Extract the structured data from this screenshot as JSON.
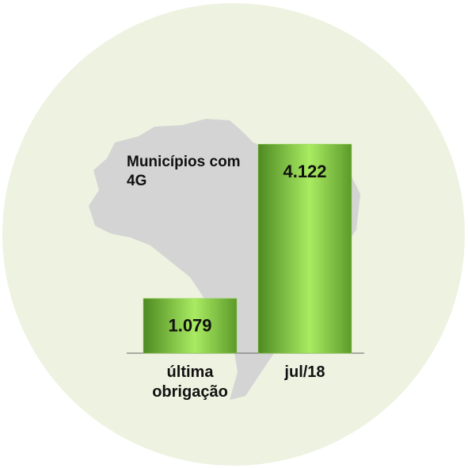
{
  "chart_data": {
    "type": "bar",
    "title": "Municípios com 4G",
    "categories": [
      "última obrigação",
      "jul/18"
    ],
    "values": [
      1079,
      4122
    ],
    "value_labels": [
      "1.079",
      "4.122"
    ],
    "color": "#8fd14f"
  }
}
